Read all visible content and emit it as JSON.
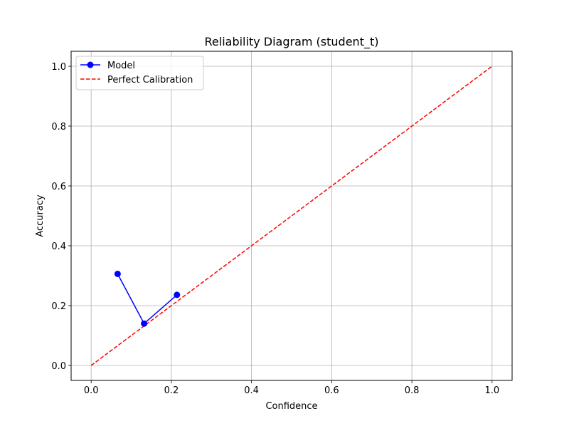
{
  "chart_data": {
    "type": "line",
    "title": "Reliability Diagram (student_t)",
    "xlabel": "Confidence",
    "ylabel": "Accuracy",
    "xlim": [
      -0.05,
      1.05
    ],
    "ylim": [
      -0.05,
      1.05
    ],
    "x_ticks": [
      0.0,
      0.2,
      0.4,
      0.6,
      0.8,
      1.0
    ],
    "x_tick_labels": [
      "0.0",
      "0.2",
      "0.4",
      "0.6",
      "0.8",
      "1.0"
    ],
    "y_ticks": [
      0.0,
      0.2,
      0.4,
      0.6,
      0.8,
      1.0
    ],
    "y_tick_labels": [
      "0.0",
      "0.2",
      "0.4",
      "0.6",
      "0.8",
      "1.0"
    ],
    "grid": true,
    "legend_position": "top-left",
    "series": [
      {
        "name": "Model",
        "style": "solid-with-circle-markers",
        "color": "#0000ff",
        "x": [
          0.066,
          0.132,
          0.214
        ],
        "y": [
          0.306,
          0.14,
          0.236
        ]
      },
      {
        "name": "Perfect Calibration",
        "style": "dashed",
        "color": "#ff0000",
        "x": [
          0.0,
          1.0
        ],
        "y": [
          0.0,
          1.0
        ]
      }
    ]
  }
}
